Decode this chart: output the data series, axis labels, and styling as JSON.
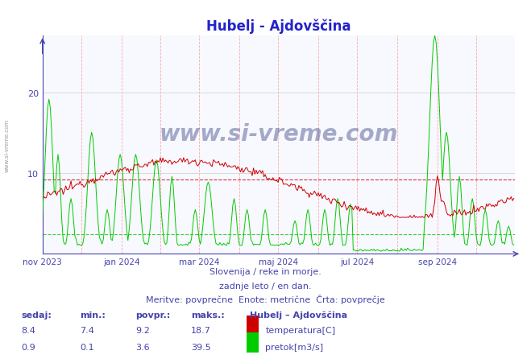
{
  "title": "Hubelj - Ajdovščina",
  "title_color": "#2222cc",
  "bg_color": "#ffffff",
  "plot_bg_color": "#f8f8ff",
  "xlabel_color": "#4444aa",
  "ylabel_ticks": [
    10,
    20
  ],
  "ylim_max": 27,
  "n_points": 365,
  "temp_avg": 9.2,
  "temp_min": 7.4,
  "temp_max": 18.7,
  "temp_current": 8.4,
  "flow_avg": 3.6,
  "flow_min": 0.1,
  "flow_max": 39.5,
  "flow_current": 0.9,
  "temp_color": "#cc0000",
  "flow_color": "#00cc00",
  "watermark_text": "www.si-vreme.com",
  "footer_line1": "Slovenija / reke in morje.",
  "footer_line2": "zadnje leto / en dan.",
  "footer_line3": "Meritve: povprečne  Enote: metrične  Črta: povprečje",
  "legend_title": "Hubelj – Ajdovščina",
  "label_temp": "temperatura[C]",
  "label_flow": "pretok[m3/s]",
  "x_tick_labels": [
    "nov 2023",
    "jan 2024",
    "mar 2024",
    "maj 2024",
    "jul 2024",
    "sep 2024"
  ],
  "x_tick_positions": [
    0,
    61,
    121,
    182,
    243,
    305
  ],
  "month_vlines": [
    0,
    30,
    61,
    91,
    121,
    152,
    182,
    213,
    243,
    274,
    305,
    335
  ],
  "sidebar_text": "www.si-vreme.com"
}
